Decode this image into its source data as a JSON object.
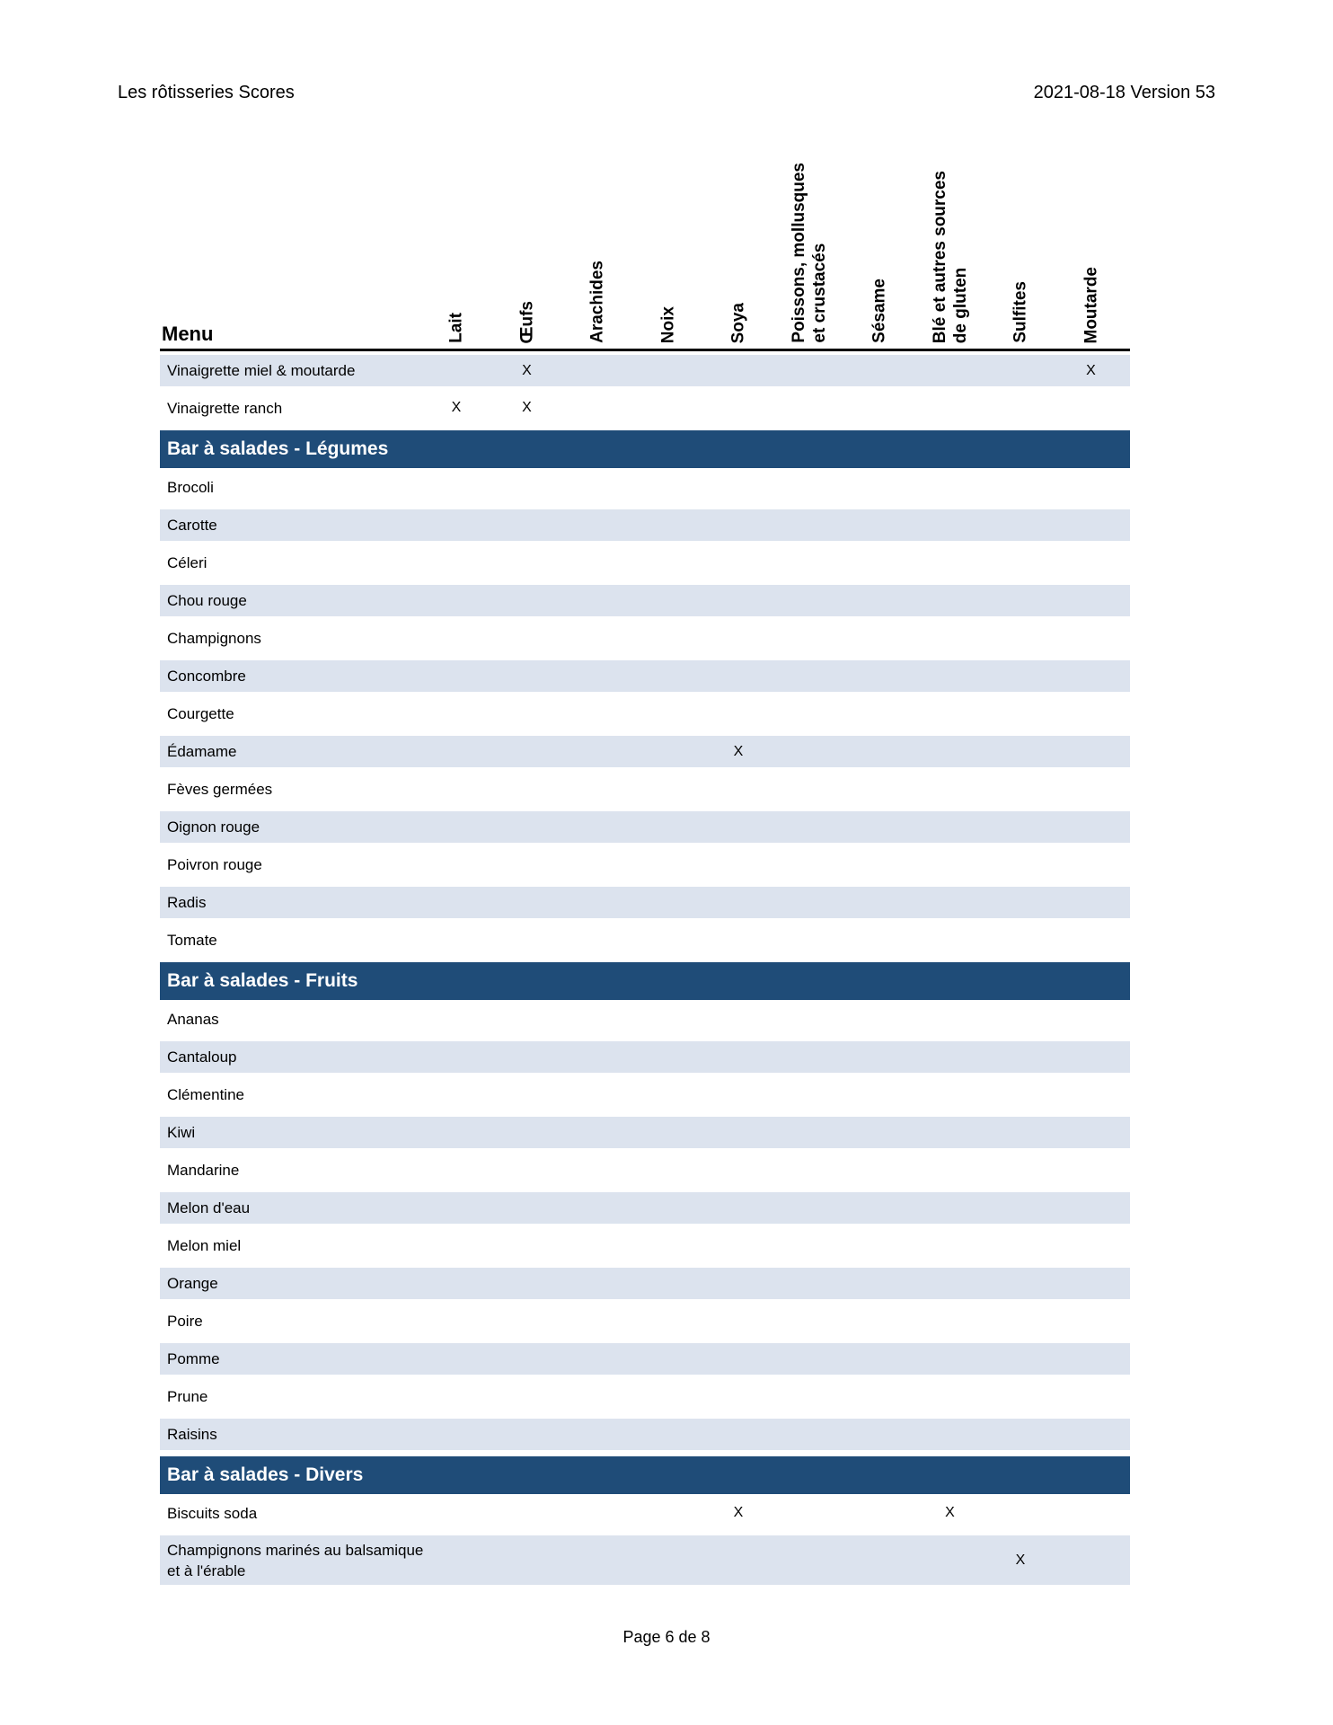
{
  "page_header": {
    "title": "Les rôtisseries Scores",
    "version": "2021-08-18 Version 53"
  },
  "footer": {
    "page_label": "Page 6 de 8"
  },
  "colors": {
    "section_header_bg": "#1f4c78",
    "shaded_row_bg": "#dce3ee",
    "header_rule": "#000000",
    "section_header_text": "#ffffff"
  },
  "table": {
    "menu_header": "Menu",
    "mark": "X",
    "columns": [
      {
        "key": "lait",
        "lines": [
          "Lait"
        ]
      },
      {
        "key": "oeufs",
        "lines": [
          "Œufs"
        ]
      },
      {
        "key": "arachides",
        "lines": [
          "Arachides"
        ]
      },
      {
        "key": "noix",
        "lines": [
          "Noix"
        ]
      },
      {
        "key": "soya",
        "lines": [
          "Soya"
        ]
      },
      {
        "key": "poissons-mollusques-crustaces",
        "lines": [
          "Poissons, mollusques",
          "et crustacés"
        ]
      },
      {
        "key": "sesame",
        "lines": [
          "Sésame"
        ]
      },
      {
        "key": "ble-gluten",
        "lines": [
          "Blé et autres sources",
          "de gluten"
        ]
      },
      {
        "key": "sulfites",
        "lines": [
          "Sulfites"
        ]
      },
      {
        "key": "moutarde",
        "lines": [
          "Moutarde"
        ]
      }
    ],
    "sections": [
      {
        "title": null,
        "rows": [
          {
            "name_lines": [
              "Vinaigrette miel & moutarde"
            ],
            "shaded": true,
            "marks": [
              1,
              9
            ]
          },
          {
            "name_lines": [
              "Vinaigrette ranch"
            ],
            "shaded": false,
            "marks": [
              0,
              1
            ]
          }
        ]
      },
      {
        "title": "Bar à salades - Légumes",
        "rows": [
          {
            "name_lines": [
              "Brocoli"
            ],
            "shaded": false,
            "marks": []
          },
          {
            "name_lines": [
              "Carotte"
            ],
            "shaded": true,
            "marks": []
          },
          {
            "name_lines": [
              "Céleri"
            ],
            "shaded": false,
            "marks": []
          },
          {
            "name_lines": [
              "Chou rouge"
            ],
            "shaded": true,
            "marks": []
          },
          {
            "name_lines": [
              "Champignons"
            ],
            "shaded": false,
            "marks": []
          },
          {
            "name_lines": [
              "Concombre"
            ],
            "shaded": true,
            "marks": []
          },
          {
            "name_lines": [
              "Courgette"
            ],
            "shaded": false,
            "marks": []
          },
          {
            "name_lines": [
              "Édamame"
            ],
            "shaded": true,
            "marks": [
              4
            ]
          },
          {
            "name_lines": [
              "Fèves germées"
            ],
            "shaded": false,
            "marks": []
          },
          {
            "name_lines": [
              "Oignon rouge"
            ],
            "shaded": true,
            "marks": []
          },
          {
            "name_lines": [
              "Poivron rouge"
            ],
            "shaded": false,
            "marks": []
          },
          {
            "name_lines": [
              "Radis"
            ],
            "shaded": true,
            "marks": []
          },
          {
            "name_lines": [
              "Tomate"
            ],
            "shaded": false,
            "marks": []
          }
        ]
      },
      {
        "title": "Bar à salades - Fruits",
        "rows": [
          {
            "name_lines": [
              "Ananas"
            ],
            "shaded": false,
            "marks": []
          },
          {
            "name_lines": [
              "Cantaloup"
            ],
            "shaded": true,
            "marks": []
          },
          {
            "name_lines": [
              "Clémentine"
            ],
            "shaded": false,
            "marks": []
          },
          {
            "name_lines": [
              "Kiwi"
            ],
            "shaded": true,
            "marks": []
          },
          {
            "name_lines": [
              "Mandarine"
            ],
            "shaded": false,
            "marks": []
          },
          {
            "name_lines": [
              "Melon d'eau"
            ],
            "shaded": true,
            "marks": []
          },
          {
            "name_lines": [
              "Melon miel"
            ],
            "shaded": false,
            "marks": []
          },
          {
            "name_lines": [
              "Orange"
            ],
            "shaded": true,
            "marks": []
          },
          {
            "name_lines": [
              "Poire"
            ],
            "shaded": false,
            "marks": []
          },
          {
            "name_lines": [
              "Pomme"
            ],
            "shaded": true,
            "marks": []
          },
          {
            "name_lines": [
              "Prune"
            ],
            "shaded": false,
            "marks": []
          },
          {
            "name_lines": [
              "Raisins"
            ],
            "shaded": true,
            "marks": []
          }
        ]
      },
      {
        "title": "Bar à salades - Divers",
        "rows": [
          {
            "name_lines": [
              "Biscuits soda"
            ],
            "shaded": false,
            "marks": [
              4,
              7
            ]
          },
          {
            "name_lines": [
              "Champignons marinés au balsamique",
              "et à l'érable"
            ],
            "shaded": true,
            "marks": [
              8
            ]
          }
        ]
      }
    ]
  }
}
